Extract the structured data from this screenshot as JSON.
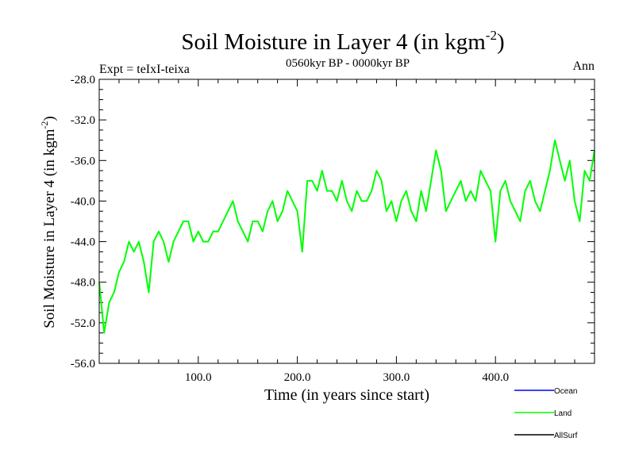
{
  "chart_data": {
    "type": "line",
    "title": "Soil Moisture in Layer 4 (in kgm",
    "title_sup": "-2",
    "title_close": ")",
    "subtitle": "0560kyr BP - 0000kyr BP",
    "left_label": "Expt = teIxI-teixa",
    "right_label": "Ann",
    "xlabel": "Time (in years since start)",
    "ylabel": "Soil Moisture in Layer 4 (in kgm",
    "ylabel_sup": "-2",
    "ylabel_close": ")",
    "xlim": [
      0,
      500
    ],
    "ylim": [
      -56,
      -28
    ],
    "xticks": [
      100,
      200,
      300,
      400
    ],
    "xtick_labels": [
      "100.0",
      "200.0",
      "300.0",
      "400.0"
    ],
    "yticks": [
      -28,
      -32,
      -36,
      -40,
      -44,
      -48,
      -52,
      -56
    ],
    "ytick_labels": [
      "-28.0",
      "-32.0",
      "-36.0",
      "-40.0",
      "-44.0",
      "-48.0",
      "-52.0",
      "-56.0"
    ],
    "legend": {
      "placement": "bottom-right",
      "entries": [
        {
          "name": "Ocean",
          "color": "#0000ff"
        },
        {
          "name": "Land",
          "color": "#00ff00"
        },
        {
          "name": "AllSurf",
          "color": "#000000"
        }
      ]
    },
    "series": [
      {
        "name": "Land",
        "color": "#00ff00",
        "x": [
          0,
          5,
          10,
          15,
          20,
          25,
          30,
          35,
          40,
          45,
          50,
          55,
          60,
          65,
          70,
          75,
          80,
          85,
          90,
          95,
          100,
          105,
          110,
          115,
          120,
          125,
          130,
          135,
          140,
          145,
          150,
          155,
          160,
          165,
          170,
          175,
          180,
          185,
          190,
          195,
          200,
          205,
          210,
          215,
          220,
          225,
          230,
          235,
          240,
          245,
          250,
          255,
          260,
          265,
          270,
          275,
          280,
          285,
          290,
          295,
          300,
          305,
          310,
          315,
          320,
          325,
          330,
          335,
          340,
          345,
          350,
          355,
          360,
          365,
          370,
          375,
          380,
          385,
          390,
          395,
          400,
          405,
          410,
          415,
          420,
          425,
          430,
          435,
          440,
          445,
          450,
          455,
          460,
          465,
          470,
          475,
          480,
          485,
          490,
          495,
          500
        ],
        "y": [
          -48,
          -53,
          -50,
          -49,
          -47,
          -46,
          -44,
          -45,
          -44,
          -46,
          -49,
          -44,
          -43,
          -44,
          -46,
          -44,
          -43,
          -42,
          -42,
          -44,
          -43,
          -44,
          -44,
          -43,
          -43,
          -42,
          -41,
          -40,
          -42,
          -43,
          -44,
          -42,
          -42,
          -43,
          -41,
          -40,
          -42,
          -41,
          -39,
          -40,
          -41,
          -45,
          -38,
          -38,
          -39,
          -37,
          -39,
          -39,
          -40,
          -38,
          -40,
          -41,
          -39,
          -40,
          -40,
          -39,
          -37,
          -38,
          -41,
          -40,
          -42,
          -40,
          -39,
          -41,
          -42,
          -39,
          -41,
          -38,
          -35,
          -37,
          -41,
          -40,
          -39,
          -38,
          -40,
          -39,
          -40,
          -37,
          -38,
          -39,
          -44,
          -39,
          -38,
          -40,
          -41,
          -42,
          -39,
          -38,
          -40,
          -41,
          -39,
          -37,
          -34,
          -36,
          -38,
          -36,
          -40,
          -42,
          -37,
          -38,
          -35
        ]
      }
    ]
  }
}
